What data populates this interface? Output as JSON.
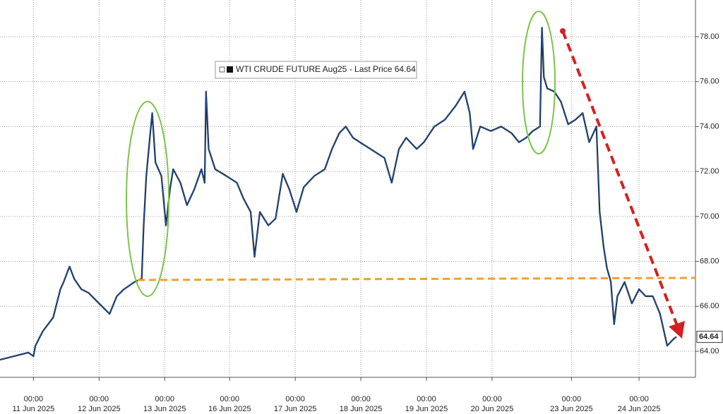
{
  "chart_data": {
    "type": "line",
    "series": [
      {
        "name": "WTI CRUDE FUTURE Aug25 - Last Price 64.64",
        "color": "#1c4f9c",
        "x": [
          -0.51,
          -0.08,
          0,
          0.03,
          0.14,
          0.3,
          0.41,
          0.46,
          0.55,
          0.62,
          0.73,
          0.84,
          1.0,
          1.16,
          1.27,
          1.38,
          1.54,
          1.65,
          1.68,
          1.72,
          1.77,
          1.81,
          1.86,
          1.95,
          2.02,
          2.08,
          2.13,
          2.24,
          2.34,
          2.45,
          2.56,
          2.61,
          2.63,
          2.67,
          2.77,
          2.94,
          3.1,
          3.2,
          3.31,
          3.37,
          3.45,
          3.58,
          3.69,
          3.8,
          3.9,
          4.01,
          4.12,
          4.28,
          4.44,
          4.55,
          4.66,
          4.76,
          4.87,
          5.03,
          5.19,
          5.35,
          5.46,
          5.57,
          5.68,
          5.84,
          5.95,
          6.11,
          6.27,
          6.43,
          6.57,
          6.65,
          6.7,
          6.81,
          6.97,
          7.13,
          7.29,
          7.4,
          7.51,
          7.61,
          7.72,
          7.75,
          7.78,
          7.83,
          7.94,
          8.04,
          8.15,
          8.26,
          8.37,
          8.47,
          8.58,
          8.63,
          8.69,
          8.74,
          8.8,
          8.85,
          8.9,
          9.01,
          9.12,
          9.23,
          9.33,
          9.44,
          9.55,
          9.66,
          9.76,
          9.8
        ],
        "values": [
          63.62,
          63.94,
          63.78,
          64.25,
          64.88,
          65.5,
          66.76,
          67.08,
          67.77,
          67.23,
          66.76,
          66.6,
          66.13,
          65.66,
          66.45,
          66.76,
          67.08,
          67.23,
          69.6,
          71.8,
          73.4,
          74.6,
          72.4,
          71.8,
          69.6,
          71.2,
          72.1,
          71.5,
          70.5,
          71.2,
          72.1,
          71.5,
          75.55,
          73.0,
          72.1,
          71.8,
          71.5,
          70.8,
          70.2,
          68.2,
          70.2,
          69.6,
          69.9,
          71.9,
          71.2,
          70.2,
          71.3,
          71.8,
          72.1,
          73.0,
          73.7,
          74.0,
          73.5,
          73.2,
          72.9,
          72.6,
          71.5,
          73.0,
          73.5,
          73.0,
          73.3,
          74.0,
          74.3,
          74.9,
          75.55,
          74.6,
          73.0,
          74.0,
          73.8,
          74.0,
          73.7,
          73.3,
          73.5,
          73.8,
          74.0,
          78.4,
          76.2,
          75.7,
          75.55,
          75.1,
          74.1,
          74.3,
          74.6,
          73.3,
          74.0,
          70.2,
          68.65,
          67.7,
          67.1,
          65.2,
          66.45,
          67.08,
          66.13,
          66.76,
          66.45,
          66.45,
          65.66,
          64.25,
          64.56,
          64.64
        ]
      }
    ],
    "last_label": "64.64",
    "xlim": [
      -0.51,
      10.09
    ],
    "xticks": [
      {
        "value": 0,
        "label": "00:00",
        "sublabel": "11 Jun 2025"
      },
      {
        "value": 1,
        "label": "00:00",
        "sublabel": "12 Jun 2025"
      },
      {
        "value": 2,
        "label": "00:00",
        "sublabel": "13 Jun 2025"
      },
      {
        "value": 2.99,
        "label": "00:00",
        "sublabel": "16 Jun 2025"
      },
      {
        "value": 3.99,
        "label": "00:00",
        "sublabel": "17 Jun 2025"
      },
      {
        "value": 4.99,
        "label": "00:00",
        "sublabel": "18 Jun 2025"
      },
      {
        "value": 5.99,
        "label": "00:00",
        "sublabel": "19 Jun 2025"
      },
      {
        "value": 6.99,
        "label": "00:00",
        "sublabel": "20 Jun 2025"
      },
      {
        "value": 8.2,
        "label": "00:00",
        "sublabel": "23 Jun 2025"
      },
      {
        "value": 9.23,
        "label": "00:00",
        "sublabel": "24 Jun 2025"
      }
    ],
    "ylim": [
      62.84,
      79.63
    ],
    "yticks": [
      {
        "value": 64,
        "label": "64.00"
      },
      {
        "value": 66,
        "label": "66.00"
      },
      {
        "value": 68,
        "label": "68.00"
      },
      {
        "value": 70,
        "label": "70.00"
      },
      {
        "value": 72,
        "label": "72.00"
      },
      {
        "value": 74,
        "label": "74.00"
      },
      {
        "value": 76,
        "label": "76.00"
      },
      {
        "value": 78,
        "label": "78.00"
      }
    ],
    "grid": true
  }
}
